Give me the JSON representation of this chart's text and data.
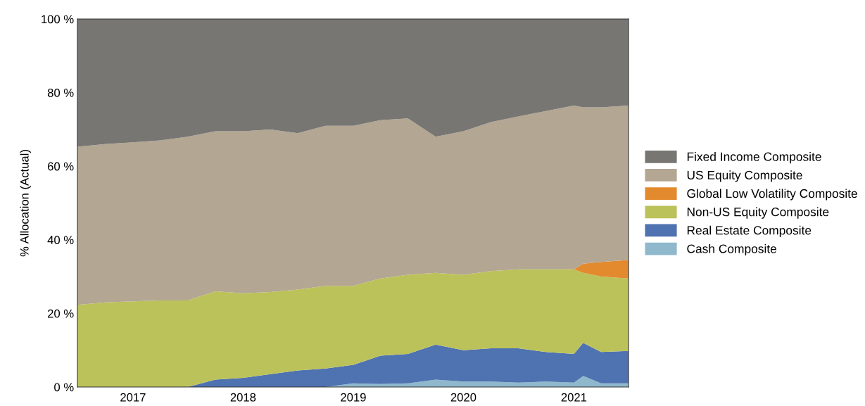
{
  "chart_data": {
    "type": "area",
    "stacked": true,
    "ylabel": "% Allocation (Actual)",
    "x": [
      "2016-07",
      "2016-10",
      "2017-01",
      "2017-04",
      "2017-07",
      "2017-10",
      "2018-01",
      "2018-04",
      "2018-07",
      "2018-10",
      "2019-01",
      "2019-04",
      "2019-07",
      "2019-10",
      "2020-01",
      "2020-04",
      "2020-07",
      "2020-10",
      "2021-01",
      "2021-02",
      "2021-04",
      "2021-07"
    ],
    "series": [
      {
        "name": "Cash Composite",
        "color": "#8fb8cc",
        "values": [
          0,
          0,
          0,
          0,
          0,
          0,
          0,
          0,
          0,
          0,
          1,
          0.8,
          1,
          2,
          1.5,
          1.5,
          1.2,
          1.5,
          1.2,
          3,
          1,
          1
        ]
      },
      {
        "name": "Real Estate Composite",
        "color": "#4f72b0",
        "values": [
          0,
          0,
          0,
          0,
          0,
          2,
          2.5,
          3.5,
          4.5,
          5,
          5,
          7.7,
          8,
          9.5,
          8.5,
          9,
          9.3,
          8,
          7.8,
          9,
          8.5,
          8.8
        ]
      },
      {
        "name": "Non-US Equity Composite",
        "color": "#bcc25a",
        "values": [
          22.3,
          23,
          23.3,
          23.5,
          23.5,
          24,
          23,
          22.3,
          22,
          22.5,
          21.5,
          21,
          21.5,
          19.5,
          20.5,
          21,
          21.5,
          22.5,
          23,
          19,
          20.5,
          19.7
        ]
      },
      {
        "name": "Global Low Volatility Composite",
        "color": "#e38a2e",
        "values": [
          0,
          0,
          0,
          0,
          0,
          0,
          0,
          0,
          0,
          0,
          0,
          0,
          0,
          0,
          0,
          0,
          0,
          0,
          0,
          2.5,
          4,
          5
        ]
      },
      {
        "name": "US Equity Composite",
        "color": "#b3a692",
        "values": [
          43,
          43,
          43.2,
          43.5,
          44.5,
          43.5,
          44,
          44.2,
          42.5,
          43.5,
          43.5,
          43,
          42.5,
          37,
          39,
          40.5,
          41.5,
          43,
          44.5,
          42.5,
          42,
          42
        ]
      },
      {
        "name": "Fixed Income Composite",
        "color": "#777673",
        "values": [
          34.7,
          34,
          33.5,
          33,
          32,
          30.5,
          30.5,
          30,
          31,
          29,
          29,
          27.5,
          27,
          32,
          30.5,
          28,
          26.5,
          25,
          23.5,
          24,
          24,
          23.5
        ]
      }
    ],
    "xlim": [
      "2016-07",
      "2021-07"
    ],
    "xticks": [
      "2017",
      "2018",
      "2019",
      "2020",
      "2021"
    ],
    "ylim": [
      0,
      100
    ],
    "yticks": [
      {
        "value": 0,
        "label": "0 %"
      },
      {
        "value": 20,
        "label": "20 %"
      },
      {
        "value": 40,
        "label": "40 %"
      },
      {
        "value": 60,
        "label": "60 %"
      },
      {
        "value": 80,
        "label": "80 %"
      },
      {
        "value": 100,
        "label": "100 %"
      }
    ],
    "legend": "right"
  }
}
